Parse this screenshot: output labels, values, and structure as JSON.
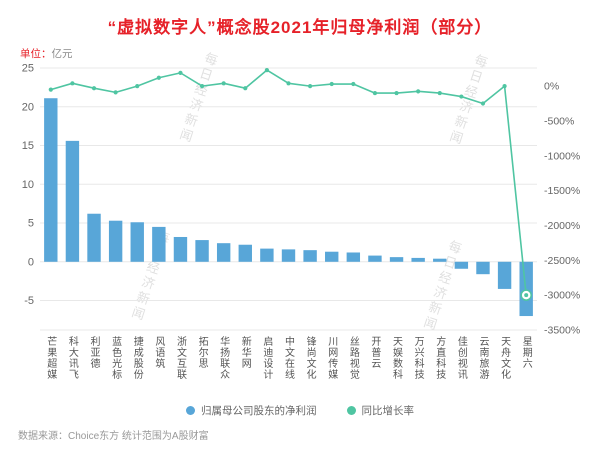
{
  "page": {
    "title": "“虚拟数字人”概念股2021年归母净利润（部分）",
    "unit_prefix": "单位：",
    "unit_value": "亿元",
    "source": "数据来源：Choice东方 统计范围为A股财富",
    "watermark_text": "每日经济新闻"
  },
  "colors": {
    "title": "#e62129",
    "unit_prefix": "#e62129",
    "bar": "#58a6d8",
    "line": "#4fc5a2",
    "grid": "#e8e8e8",
    "axis_text": "#666666",
    "watermark": "#d6d6d6"
  },
  "legend": [
    {
      "label": "归属母公司股东的净利润",
      "color": "#58a6d8"
    },
    {
      "label": "同比增长率",
      "color": "#4fc5a2"
    }
  ],
  "chart_data": {
    "type": "bar",
    "title": "“虚拟数字人”概念股2021年归母净利润（部分）",
    "unit": "亿元",
    "grid": true,
    "legend_position": "bottom",
    "categories": [
      "芒果超媒",
      "科大讯飞",
      "利亚德",
      "蓝色光标",
      "捷成股份",
      "风语筑",
      "浙文互联",
      "拓尔思",
      "华扬联众",
      "新华网",
      "启迪设计",
      "中文在线",
      "锋尚文化",
      "川网传媒",
      "丝路视觉",
      "开普云",
      "天娱数科",
      "万兴科技",
      "方直科技",
      "佳创视讯",
      "云南旅游",
      "天舟文化",
      "星期六"
    ],
    "series": [
      {
        "name": "归属母公司股东的净利润",
        "type": "bar",
        "axis": "left",
        "unit": "亿元",
        "values": [
          21.1,
          15.6,
          6.2,
          5.3,
          5.1,
          4.5,
          3.2,
          2.8,
          2.4,
          2.2,
          1.7,
          1.6,
          1.5,
          1.3,
          1.2,
          0.8,
          0.6,
          0.5,
          0.4,
          -0.9,
          -1.6,
          -3.5,
          -7.0
        ]
      },
      {
        "name": "同比增长率",
        "type": "line",
        "axis": "right",
        "unit": "%",
        "values": [
          -50,
          40,
          -30,
          -90,
          0,
          120,
          190,
          0,
          40,
          -30,
          230,
          40,
          0,
          30,
          30,
          -100,
          -100,
          -75,
          -100,
          -150,
          -250,
          0,
          -3000
        ]
      }
    ],
    "left_axis": {
      "ticks": [
        25,
        20,
        15,
        10,
        5,
        0,
        -5
      ],
      "max": 25,
      "min": -8.8
    },
    "right_axis": {
      "ticks_percent": [
        0,
        -500,
        -1000,
        -1500,
        -2000,
        -2500,
        -3000,
        -3500
      ],
      "max": 260,
      "min": -3500
    },
    "highlight": {
      "series": "同比增长率",
      "category": "星期六",
      "style": "circled-point"
    }
  }
}
